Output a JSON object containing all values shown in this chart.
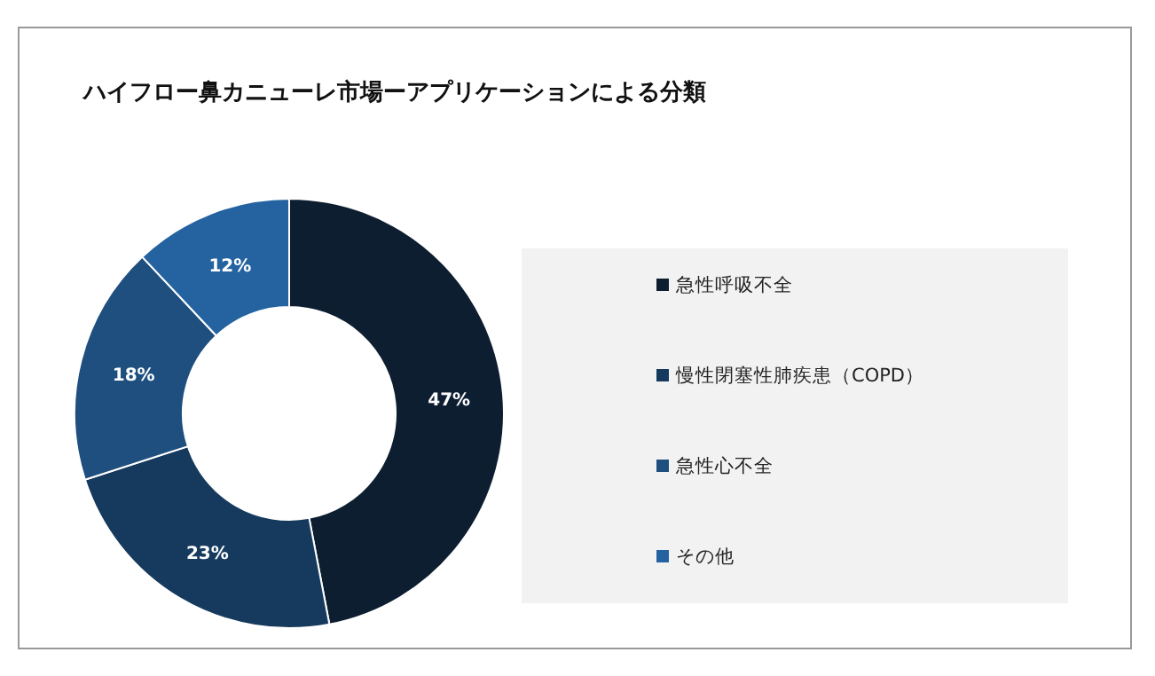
{
  "chart_data": {
    "type": "donut",
    "title": "ハイフロー鼻カニューレ市場ーアプリケーションによる分類",
    "categories": [
      "急性呼吸不全",
      "慢性閉塞性肺疾患（COPD）",
      "急性心不全",
      "その他"
    ],
    "values": [
      47,
      23,
      18,
      12
    ],
    "colors": [
      "#0d1e31",
      "#163a5e",
      "#1f4f7f",
      "#2563a0"
    ],
    "value_labels": [
      "47%",
      "23%",
      "18%",
      "12%"
    ],
    "legend": "right"
  }
}
